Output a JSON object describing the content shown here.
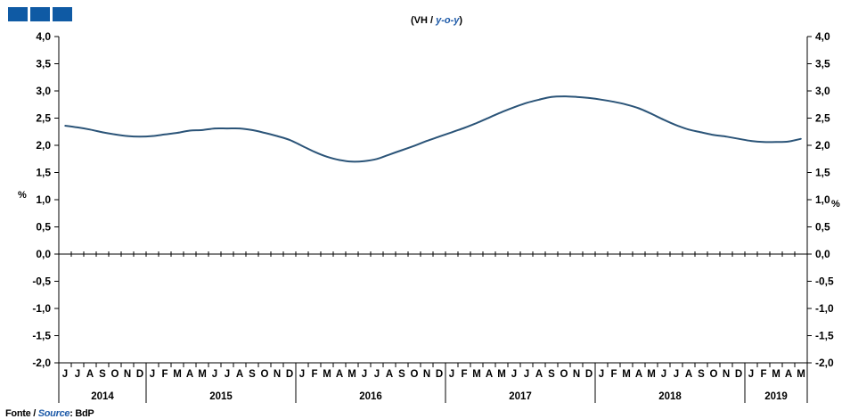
{
  "colors": {
    "line": "#2b5478",
    "logo": "#0f5aa4",
    "source_en": "#1d5aa8"
  },
  "logo_icon": "bdp-logo-icon",
  "title_pt": "(VH / ",
  "title_en": "y-o-y",
  "title_end": ")",
  "source_label": "Fonte / ",
  "source_label_en": "Source",
  "source_colon": ":",
  "source_value": "BdP",
  "chart_data": {
    "type": "line",
    "ylabel": "%",
    "ylim": [
      -2.0,
      4.0
    ],
    "y_ticks": [
      "-2,0",
      "-1,5",
      "-1,0",
      "-0,5",
      "0,0",
      "0,5",
      "1,0",
      "1,5",
      "2,0",
      "2,5",
      "3,0",
      "3,5",
      "4,0"
    ],
    "grid": false,
    "month_labels": [
      "J",
      "J",
      "A",
      "S",
      "O",
      "N",
      "D",
      "J",
      "F",
      "M",
      "A",
      "M",
      "J",
      "J",
      "A",
      "S",
      "O",
      "N",
      "D",
      "J",
      "F",
      "M",
      "A",
      "M",
      "J",
      "J",
      "A",
      "S",
      "O",
      "N",
      "D",
      "J",
      "F",
      "M",
      "A",
      "M",
      "J",
      "J",
      "A",
      "S",
      "O",
      "N",
      "D",
      "J",
      "F",
      "M",
      "A",
      "M",
      "J",
      "J",
      "A",
      "S",
      "O",
      "N",
      "D",
      "J",
      "F",
      "M",
      "A",
      "M"
    ],
    "years": [
      {
        "label": "2014",
        "months": 7
      },
      {
        "label": "2015",
        "months": 12
      },
      {
        "label": "2016",
        "months": 12
      },
      {
        "label": "2017",
        "months": 12
      },
      {
        "label": "2018",
        "months": 12
      },
      {
        "label": "2019",
        "months": 5
      }
    ],
    "x": [
      "2014-06",
      "2014-07",
      "2014-08",
      "2014-09",
      "2014-10",
      "2014-11",
      "2014-12",
      "2015-01",
      "2015-02",
      "2015-03",
      "2015-04",
      "2015-05",
      "2015-06",
      "2015-07",
      "2015-08",
      "2015-09",
      "2015-10",
      "2015-11",
      "2015-12",
      "2016-01",
      "2016-02",
      "2016-03",
      "2016-04",
      "2016-05",
      "2016-06",
      "2016-07",
      "2016-08",
      "2016-09",
      "2016-10",
      "2016-11",
      "2016-12",
      "2017-01",
      "2017-02",
      "2017-03",
      "2017-04",
      "2017-05",
      "2017-06",
      "2017-07",
      "2017-08",
      "2017-09",
      "2017-10",
      "2017-11",
      "2017-12",
      "2018-01",
      "2018-02",
      "2018-03",
      "2018-04",
      "2018-05",
      "2018-06",
      "2018-07",
      "2018-08",
      "2018-09",
      "2018-10",
      "2018-11",
      "2018-12",
      "2019-01",
      "2019-02",
      "2019-03",
      "2019-04",
      "2019-05"
    ],
    "series": [
      {
        "values": [
          2.36,
          2.33,
          2.29,
          2.24,
          2.2,
          2.17,
          2.16,
          2.17,
          2.2,
          2.23,
          2.27,
          2.28,
          2.31,
          2.31,
          2.31,
          2.28,
          2.23,
          2.17,
          2.1,
          1.99,
          1.88,
          1.79,
          1.73,
          1.7,
          1.71,
          1.75,
          1.83,
          1.91,
          1.99,
          2.08,
          2.16,
          2.24,
          2.32,
          2.41,
          2.51,
          2.61,
          2.7,
          2.78,
          2.84,
          2.89,
          2.9,
          2.89,
          2.87,
          2.84,
          2.8,
          2.75,
          2.68,
          2.58,
          2.47,
          2.37,
          2.29,
          2.24,
          2.19,
          2.16,
          2.12,
          2.08,
          2.06,
          2.06,
          2.07,
          2.12
        ]
      }
    ]
  }
}
